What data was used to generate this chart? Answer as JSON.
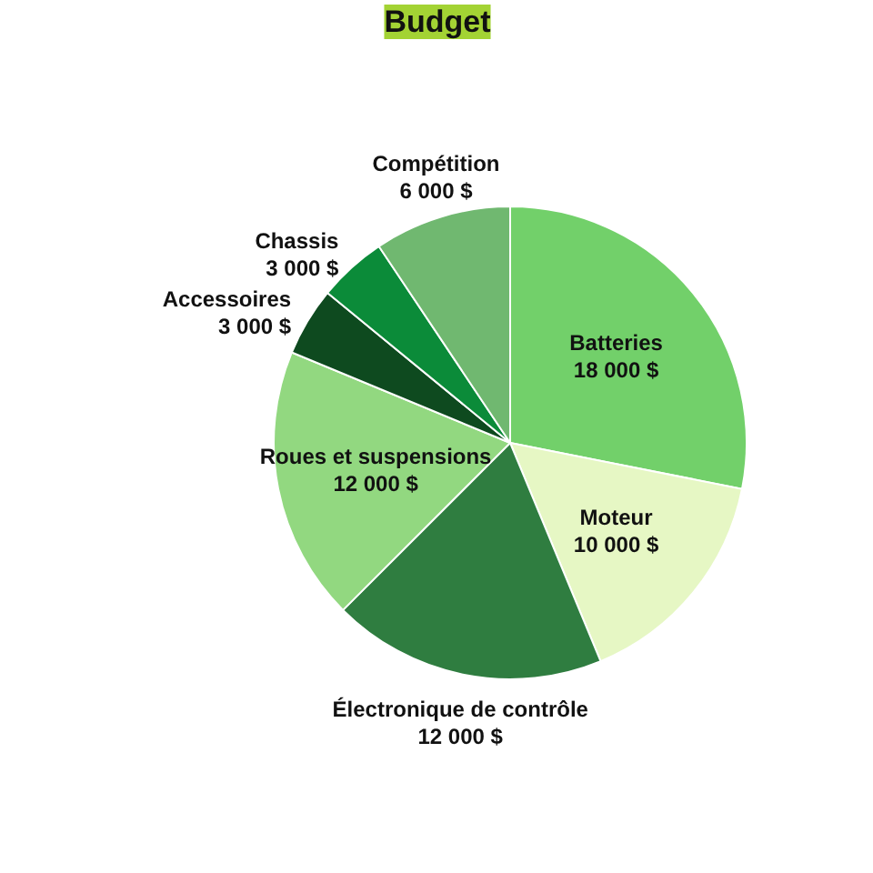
{
  "chart_data": {
    "type": "pie",
    "title": "Budget",
    "categories": [
      "Batteries",
      "Moteur",
      "Électronique de contrôle",
      "Roues et suspensions",
      "Accessoires",
      "Chassis",
      "Compétition"
    ],
    "values": [
      18000,
      10000,
      12000,
      12000,
      3000,
      3000,
      6000
    ],
    "colors": [
      "#72d06a",
      "#e6f7c4",
      "#2f7d40",
      "#92d880",
      "#0e4a1f",
      "#0b8b39",
      "#70b870"
    ],
    "value_labels": [
      "18 000 $",
      "10 000 $",
      "12 000 $",
      "12 000 $",
      "3 000 $",
      "3 000 $",
      "6 000 $"
    ]
  }
}
